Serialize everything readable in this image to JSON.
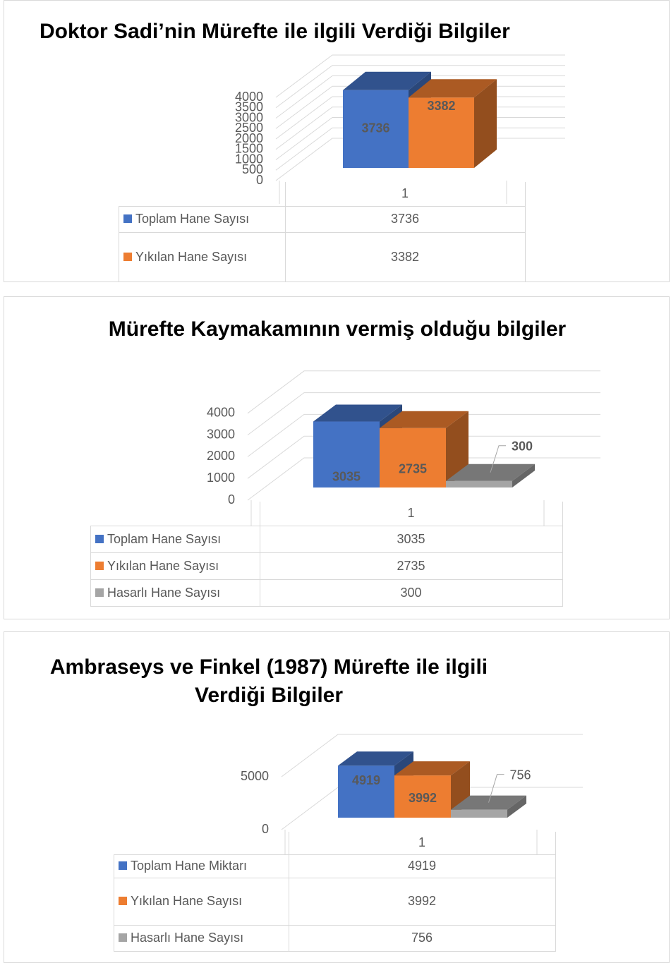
{
  "chart_data": [
    {
      "type": "bar",
      "title": "Doktor Sadi’nin Mürefte ile ilgili Verdiği Bilgiler",
      "categories": [
        "1"
      ],
      "series": [
        {
          "name": "Toplam Hane Sayısı",
          "color": "#4472c4",
          "values": [
            3736
          ]
        },
        {
          "name": "Yıkılan Hane Sayısı",
          "color": "#ed7d31",
          "values": [
            3382
          ]
        }
      ],
      "ylim": [
        0,
        4000
      ],
      "yticks": [
        0,
        500,
        1000,
        1500,
        2000,
        2500,
        3000,
        3500,
        4000
      ],
      "grid": true
    },
    {
      "type": "bar",
      "title": "Mürefte Kaymakamının vermiş olduğu bilgiler",
      "categories": [
        "1"
      ],
      "series": [
        {
          "name": "Toplam Hane Sayısı",
          "color": "#4472c4",
          "values": [
            3035
          ]
        },
        {
          "name": "Yıkılan Hane Sayısı",
          "color": "#ed7d31",
          "values": [
            2735
          ]
        },
        {
          "name": "Hasarlı Hane Sayısı",
          "color": "#a5a5a5",
          "values": [
            300
          ]
        }
      ],
      "ylim": [
        0,
        5000
      ],
      "yticks": [
        0,
        1000,
        2000,
        3000,
        4000
      ],
      "grid": true
    },
    {
      "type": "bar",
      "title": "Ambraseys ve Finkel (1987) Mürefte ile ilgili Verdiği Bilgiler",
      "categories": [
        "1"
      ],
      "series": [
        {
          "name": "Toplam Hane Miktarı",
          "color": "#4472c4",
          "values": [
            4919
          ]
        },
        {
          "name": "Yıkılan Hane Sayısı",
          "color": "#ed7d31",
          "values": [
            3992
          ]
        },
        {
          "name": "Hasarlı Hane Sayısı",
          "color": "#a5a5a5",
          "values": [
            756
          ]
        }
      ],
      "ylim": [
        0,
        5000
      ],
      "yticks": [
        0,
        5000
      ],
      "grid": true
    }
  ]
}
